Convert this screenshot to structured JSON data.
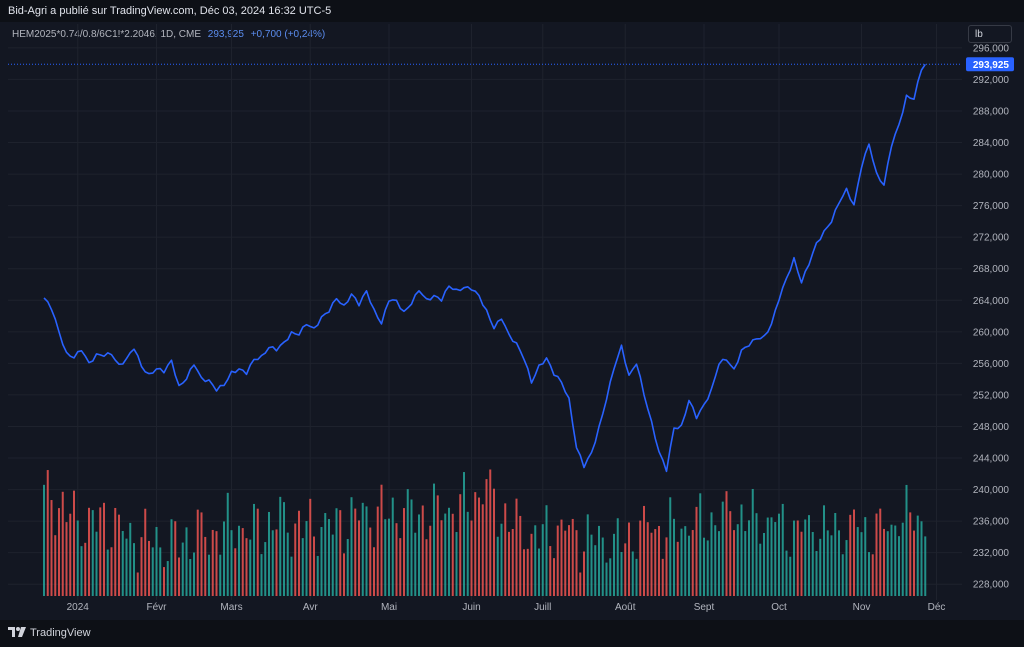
{
  "header": {
    "title": "Bid-Agri a publié sur TradingView.com, Déc 03, 2024 16:32 UTC-5"
  },
  "legend": {
    "symbol": "HEM2025*0.74/0.8/6C1!*2.2046, 1D, CME",
    "last_value": "293,925",
    "change": "+0,700 (+0,24%)"
  },
  "unit_button": "lb",
  "footer": {
    "logo_text": "TradingView",
    "logo_icon": "tradingview-logo-icon"
  },
  "colors": {
    "line": "#2962ff",
    "up": "#26a69a",
    "down": "#ef5350",
    "grid": "#1e222d",
    "price_tag": "#2962ff"
  },
  "chart_data": {
    "type": "line",
    "title": "HEM2025*0.74/0.8/6C1!*2.2046, 1D, CME",
    "xlabel": "",
    "ylabel": "lb",
    "ylim": [
      226,
      297
    ],
    "grid": true,
    "last_price": 293.925,
    "last_price_label": "293,925",
    "y_ticks": [
      {
        "value": 296,
        "label": "296,000"
      },
      {
        "value": 292,
        "label": "292,000"
      },
      {
        "value": 288,
        "label": "288,000"
      },
      {
        "value": 284,
        "label": "284,000"
      },
      {
        "value": 280,
        "label": "280,000"
      },
      {
        "value": 276,
        "label": "276,000"
      },
      {
        "value": 272,
        "label": "272,000"
      },
      {
        "value": 268,
        "label": "268,000"
      },
      {
        "value": 264,
        "label": "264,000"
      },
      {
        "value": 260,
        "label": "260,000"
      },
      {
        "value": 256,
        "label": "256,000"
      },
      {
        "value": 252,
        "label": "252,000"
      },
      {
        "value": 248,
        "label": "248,000"
      },
      {
        "value": 244,
        "label": "244,000"
      },
      {
        "value": 240,
        "label": "240,000"
      },
      {
        "value": 236,
        "label": "236,000"
      },
      {
        "value": 232,
        "label": "232,000"
      },
      {
        "value": 228,
        "label": "228,000"
      }
    ],
    "x_ticks": [
      {
        "label": "2024",
        "index": 9
      },
      {
        "label": "Févr",
        "index": 30
      },
      {
        "label": "Mars",
        "index": 50
      },
      {
        "label": "Avr",
        "index": 71
      },
      {
        "label": "Mai",
        "index": 92
      },
      {
        "label": "Juin",
        "index": 114
      },
      {
        "label": "Juill",
        "index": 133
      },
      {
        "label": "Août",
        "index": 155
      },
      {
        "label": "Sept",
        "index": 176
      },
      {
        "label": "Oct",
        "index": 196
      },
      {
        "label": "Nov",
        "index": 218
      },
      {
        "label": "Déc",
        "index": 238
      }
    ],
    "anchors": [
      [
        0,
        264.3
      ],
      [
        2,
        262.8
      ],
      [
        4,
        260
      ],
      [
        6,
        257.4
      ],
      [
        8,
        256.7
      ],
      [
        10,
        257.6
      ],
      [
        12,
        256.1
      ],
      [
        14,
        257.2
      ],
      [
        16,
        256.9
      ],
      [
        18,
        257.1
      ],
      [
        20,
        255.9
      ],
      [
        22,
        256.6
      ],
      [
        24,
        257.8
      ],
      [
        26,
        255.6
      ],
      [
        28,
        254.7
      ],
      [
        30,
        255.3
      ],
      [
        32,
        254.8
      ],
      [
        34,
        256.4
      ],
      [
        36,
        253.2
      ],
      [
        38,
        254
      ],
      [
        40,
        255.8
      ],
      [
        42,
        254.2
      ],
      [
        44,
        253.9
      ],
      [
        46,
        252.5
      ],
      [
        48,
        253.2
      ],
      [
        50,
        255
      ],
      [
        52,
        255.3
      ],
      [
        54,
        254.6
      ],
      [
        56,
        256.5
      ],
      [
        58,
        257
      ],
      [
        60,
        258
      ],
      [
        62,
        257.6
      ],
      [
        64,
        258.7
      ],
      [
        66,
        260
      ],
      [
        68,
        259.6
      ],
      [
        70,
        260.9
      ],
      [
        72,
        260.5
      ],
      [
        74,
        261.9
      ],
      [
        76,
        262.5
      ],
      [
        78,
        264.2
      ],
      [
        80,
        263.4
      ],
      [
        82,
        264.8
      ],
      [
        84,
        263.3
      ],
      [
        86,
        265.2
      ],
      [
        88,
        262.9
      ],
      [
        90,
        261
      ],
      [
        92,
        263.9
      ],
      [
        94,
        264
      ],
      [
        96,
        262.6
      ],
      [
        98,
        263.5
      ],
      [
        100,
        265.2
      ],
      [
        102,
        264.2
      ],
      [
        104,
        264.6
      ],
      [
        106,
        263.9
      ],
      [
        108,
        265.8
      ],
      [
        110,
        265.4
      ],
      [
        112,
        265.6
      ],
      [
        114,
        265.3
      ],
      [
        116,
        264.6
      ],
      [
        118,
        262.8
      ],
      [
        120,
        260.4
      ],
      [
        122,
        261.6
      ],
      [
        124,
        259.7
      ],
      [
        126,
        258.6
      ],
      [
        128,
        256.5
      ],
      [
        130,
        253.5
      ],
      [
        132,
        255.8
      ],
      [
        134,
        256.7
      ],
      [
        136,
        254.5
      ],
      [
        138,
        253.6
      ],
      [
        140,
        251.6
      ],
      [
        142,
        245.3
      ],
      [
        144,
        242.8
      ],
      [
        146,
        244.7
      ],
      [
        148,
        248
      ],
      [
        150,
        251.4
      ],
      [
        152,
        255.3
      ],
      [
        154,
        258.3
      ],
      [
        156,
        254.5
      ],
      [
        158,
        255.9
      ],
      [
        160,
        252
      ],
      [
        162,
        248.7
      ],
      [
        164,
        244.8
      ],
      [
        166,
        242.3
      ],
      [
        168,
        247.8
      ],
      [
        170,
        248.2
      ],
      [
        172,
        251.3
      ],
      [
        174,
        249
      ],
      [
        176,
        250.8
      ],
      [
        178,
        252.8
      ],
      [
        180,
        255.9
      ],
      [
        182,
        256.4
      ],
      [
        184,
        255.3
      ],
      [
        186,
        257.7
      ],
      [
        188,
        258.2
      ],
      [
        190,
        259.1
      ],
      [
        192,
        259.5
      ],
      [
        194,
        261
      ],
      [
        196,
        264
      ],
      [
        198,
        266.8
      ],
      [
        200,
        269.4
      ],
      [
        202,
        266.2
      ],
      [
        204,
        268.5
      ],
      [
        206,
        271.3
      ],
      [
        208,
        272.8
      ],
      [
        210,
        273.9
      ],
      [
        212,
        276.3
      ],
      [
        214,
        278.2
      ],
      [
        216,
        276.1
      ],
      [
        218,
        280.8
      ],
      [
        220,
        283.8
      ],
      [
        222,
        280.2
      ],
      [
        224,
        278.6
      ],
      [
        226,
        283.5
      ],
      [
        228,
        286.3
      ],
      [
        230,
        290
      ],
      [
        232,
        289.5
      ],
      [
        234,
        293.2
      ],
      [
        235,
        293.925
      ]
    ],
    "volume_anchors": [
      [
        0,
        240
      ],
      [
        8,
        236
      ],
      [
        16,
        236
      ],
      [
        24,
        234
      ],
      [
        32,
        233
      ],
      [
        40,
        234
      ],
      [
        48,
        235
      ],
      [
        56,
        235
      ],
      [
        64,
        236
      ],
      [
        72,
        235
      ],
      [
        80,
        236
      ],
      [
        88,
        237
      ],
      [
        96,
        237
      ],
      [
        104,
        237
      ],
      [
        112,
        238
      ],
      [
        118,
        240
      ],
      [
        124,
        236
      ],
      [
        130,
        234
      ],
      [
        136,
        235
      ],
      [
        144,
        234
      ],
      [
        152,
        233
      ],
      [
        160,
        235
      ],
      [
        168,
        235
      ],
      [
        176,
        236
      ],
      [
        184,
        237
      ],
      [
        192,
        236
      ],
      [
        200,
        235
      ],
      [
        208,
        235
      ],
      [
        216,
        235
      ],
      [
        224,
        235
      ],
      [
        232,
        237
      ],
      [
        235,
        236
      ]
    ]
  }
}
